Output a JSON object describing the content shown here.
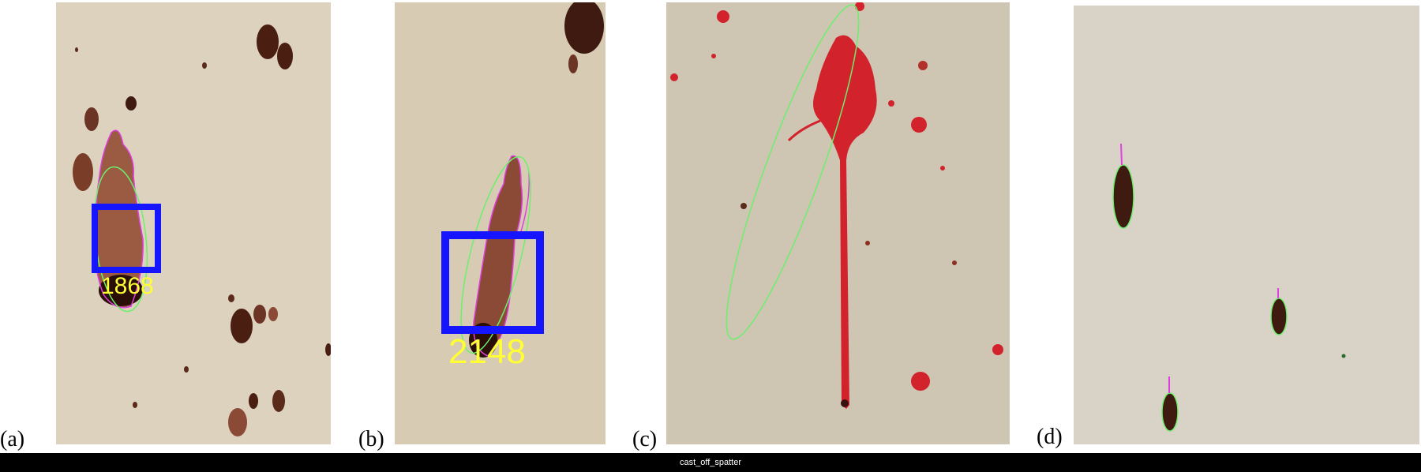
{
  "panels": [
    {
      "label": "(a)",
      "annotation": "1868"
    },
    {
      "label": "(b)",
      "annotation": "2148"
    },
    {
      "label": "(c)",
      "annotation": ""
    },
    {
      "label": "(d)",
      "annotation": ""
    }
  ],
  "caption": "cast_off_spatter",
  "colors": {
    "paper_a": "#ddd2bd",
    "paper_b": "#d7cbb3",
    "paper_c": "#cfc5b3",
    "paper_d": "#d9d3c7",
    "stain_dark": "#4a1f12",
    "stain_brown": "#8b4a35",
    "stain_red": "#d2222c",
    "box_blue": "#1515ff",
    "label_yellow": "#ffff33",
    "contour_magenta": "#e040e0",
    "ellipse_green": "#6cf06c"
  }
}
